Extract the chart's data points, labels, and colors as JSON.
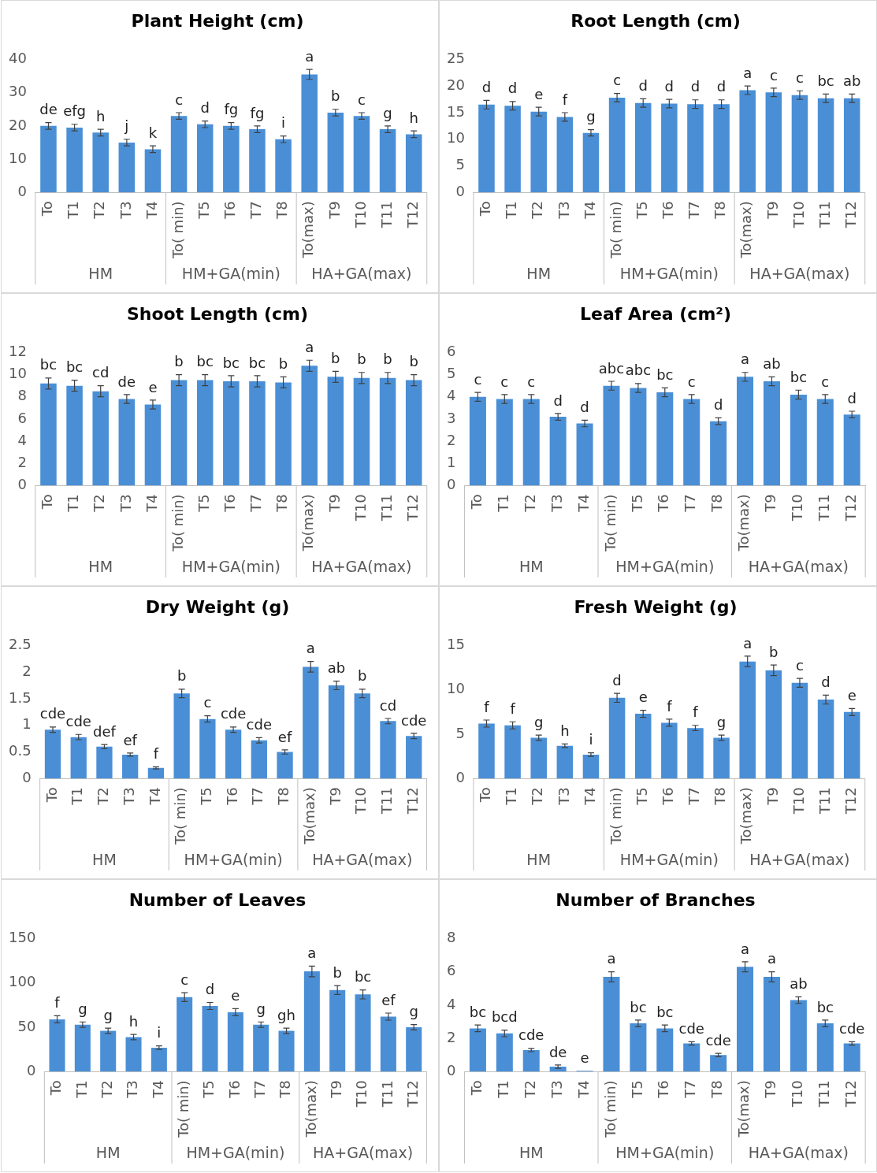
{
  "chart_data": [
    {
      "type": "bar",
      "title": "Plant Height (cm)",
      "categories": [
        "To",
        "T1",
        "T2",
        "T3",
        "T4",
        "To( min)",
        "T5",
        "T6",
        "T7",
        "T8",
        "To(max)",
        "T9",
        "T10",
        "T11",
        "T12"
      ],
      "values": [
        20,
        19.5,
        18,
        15,
        13,
        23,
        20.5,
        20,
        19,
        16,
        35.5,
        24,
        23,
        19,
        17.5
      ],
      "errors": [
        1,
        1,
        1,
        1,
        1,
        1,
        1,
        1,
        1,
        1,
        1.5,
        1,
        1,
        1,
        1
      ],
      "value_labels": [
        "de",
        "efg",
        "h",
        "j",
        "k",
        "c",
        "d",
        "fg",
        "fg",
        "i",
        "a",
        "b",
        "c",
        "g",
        "h"
      ],
      "color": "#4a8fd6",
      "ylim": [
        0,
        40
      ],
      "yticks": [
        0,
        10,
        20,
        30,
        40
      ],
      "annotations": [
        "HM",
        "HM+GA(min)",
        "HA+GA(max)"
      ]
    },
    {
      "type": "bar",
      "title": "Root Length (cm)",
      "categories": [
        "To",
        "T1",
        "T2",
        "T3",
        "T4",
        "To( min)",
        "T5",
        "T6",
        "T7",
        "T8",
        "To(max)",
        "T9",
        "T10",
        "T11",
        "T12"
      ],
      "values": [
        16.5,
        16.3,
        15.2,
        14.2,
        11.2,
        17.8,
        16.8,
        16.7,
        16.6,
        16.6,
        19.2,
        18.8,
        18.3,
        17.7,
        17.7
      ],
      "errors": [
        0.8,
        0.8,
        0.8,
        0.8,
        0.6,
        0.8,
        0.8,
        0.8,
        0.8,
        0.8,
        0.8,
        0.8,
        0.8,
        0.8,
        0.8
      ],
      "value_labels": [
        "d",
        "d",
        "e",
        "f",
        "g",
        "c",
        "d",
        "d",
        "d",
        "d",
        "a",
        "c",
        "c",
        "bc",
        "ab"
      ],
      "color": "#4a8fd6",
      "ylim": [
        0,
        25
      ],
      "yticks": [
        0,
        5,
        10,
        15,
        20,
        25
      ],
      "annotations": [
        "HM",
        "HM+GA(min)",
        "HA+GA(max)"
      ]
    },
    {
      "type": "bar",
      "title": "Shoot Length (cm)",
      "categories": [
        "To",
        "T1",
        "T2",
        "T3",
        "T4",
        "To( min)",
        "T5",
        "T6",
        "T7",
        "T8",
        "To(max)",
        "T9",
        "T10",
        "T11",
        "T12"
      ],
      "values": [
        9.2,
        9,
        8.5,
        7.8,
        7.3,
        9.5,
        9.5,
        9.4,
        9.4,
        9.3,
        10.8,
        9.8,
        9.7,
        9.7,
        9.5
      ],
      "errors": [
        0.5,
        0.5,
        0.5,
        0.4,
        0.4,
        0.5,
        0.5,
        0.5,
        0.5,
        0.5,
        0.5,
        0.5,
        0.5,
        0.5,
        0.5
      ],
      "value_labels": [
        "bc",
        "bc",
        "cd",
        "de",
        "e",
        "b",
        "bc",
        "bc",
        "bc",
        "b",
        "a",
        "b",
        "b",
        "b",
        "b"
      ],
      "color": "#4a8fd6",
      "ylim": [
        0,
        12
      ],
      "yticks": [
        0,
        2,
        4,
        6,
        8,
        10,
        12
      ],
      "annotations": [
        "HM",
        "HM+GA(min)",
        "HA+GA(max)"
      ]
    },
    {
      "type": "bar",
      "title": "Leaf Area (cm²)",
      "categories": [
        "To",
        "T1",
        "T2",
        "T3",
        "T4",
        "To( min)",
        "T5",
        "T6",
        "T7",
        "T8",
        "To(max)",
        "T9",
        "T10",
        "T11",
        "T12"
      ],
      "values": [
        4,
        3.9,
        3.9,
        3.1,
        2.8,
        4.5,
        4.4,
        4.2,
        3.9,
        2.9,
        4.9,
        4.7,
        4.1,
        3.9,
        3.2
      ],
      "errors": [
        0.2,
        0.2,
        0.2,
        0.15,
        0.15,
        0.2,
        0.2,
        0.2,
        0.2,
        0.15,
        0.2,
        0.2,
        0.2,
        0.2,
        0.15
      ],
      "value_labels": [
        "c",
        "c",
        "c",
        "d",
        "d",
        "abc",
        "abc",
        "bc",
        "c",
        "d",
        "a",
        "ab",
        "bc",
        "c",
        "d"
      ],
      "color": "#4a8fd6",
      "ylim": [
        0,
        6
      ],
      "yticks": [
        0,
        1,
        2,
        3,
        4,
        5,
        6
      ],
      "annotations": [
        "HM",
        "HM+GA(min)",
        "HA+GA(max)"
      ]
    },
    {
      "type": "bar",
      "title": "Dry Weight (g)",
      "categories": [
        "To",
        "T1",
        "T2",
        "T3",
        "T4",
        "To( min)",
        "T5",
        "T6",
        "T7",
        "T8",
        "To(max)",
        "T9",
        "T10",
        "T11",
        "T12"
      ],
      "values": [
        0.92,
        0.78,
        0.6,
        0.45,
        0.2,
        1.6,
        1.12,
        0.92,
        0.72,
        0.5,
        2.1,
        1.75,
        1.6,
        1.08,
        0.8
      ],
      "errors": [
        0.05,
        0.05,
        0.04,
        0.03,
        0.02,
        0.08,
        0.06,
        0.05,
        0.05,
        0.04,
        0.1,
        0.08,
        0.08,
        0.05,
        0.05
      ],
      "value_labels": [
        "cde",
        "cde",
        "def",
        "ef",
        "f",
        "b",
        "c",
        "cde",
        "cde",
        "ef",
        "a",
        "ab",
        "b",
        "cd",
        "cde"
      ],
      "color": "#4a8fd6",
      "ylim": [
        0,
        2.5
      ],
      "yticks": [
        0,
        0.5,
        1,
        1.5,
        2,
        2.5
      ],
      "annotations": [
        "HM",
        "HM+GA(min)",
        "HA+GA(max)"
      ]
    },
    {
      "type": "bar",
      "title": "Fresh Weight (g)",
      "categories": [
        "To",
        "T1",
        "T2",
        "T3",
        "T4",
        "To( min)",
        "T5",
        "T6",
        "T7",
        "T8",
        "To(max)",
        "T9",
        "T10",
        "T11",
        "T12"
      ],
      "values": [
        6.2,
        6,
        4.6,
        3.7,
        2.7,
        9.1,
        7.3,
        6.3,
        5.7,
        4.6,
        13.2,
        12.2,
        10.8,
        8.9,
        7.5
      ],
      "errors": [
        0.4,
        0.4,
        0.3,
        0.2,
        0.2,
        0.5,
        0.4,
        0.4,
        0.3,
        0.3,
        0.6,
        0.6,
        0.5,
        0.5,
        0.4
      ],
      "value_labels": [
        "f",
        "f",
        "g",
        "h",
        "i",
        "d",
        "e",
        "f",
        "f",
        "g",
        "a",
        "b",
        "c",
        "d",
        "e"
      ],
      "color": "#4a8fd6",
      "ylim": [
        0,
        15
      ],
      "yticks": [
        0,
        5,
        10,
        15
      ],
      "annotations": [
        "HM",
        "HM+GA(min)",
        "HA+GA(max)"
      ]
    },
    {
      "type": "bar",
      "title": "Number of Leaves",
      "categories": [
        "To",
        "T1",
        "T2",
        "T3",
        "T4",
        "To( min)",
        "T5",
        "T6",
        "T7",
        "T8",
        "To(max)",
        "T9",
        "T10",
        "T11",
        "T12"
      ],
      "values": [
        59,
        53,
        46,
        39,
        27,
        84,
        74,
        67,
        53,
        46,
        113,
        92,
        87,
        62,
        50
      ],
      "errors": [
        4,
        3,
        3,
        3,
        2,
        5,
        4,
        4,
        3,
        3,
        6,
        5,
        5,
        4,
        3
      ],
      "value_labels": [
        "f",
        "g",
        "g",
        "h",
        "i",
        "c",
        "d",
        "e",
        "g",
        "gh",
        "a",
        "b",
        "bc",
        "ef",
        "g"
      ],
      "color": "#4a8fd6",
      "ylim": [
        0,
        150
      ],
      "yticks": [
        0,
        50,
        100,
        150
      ],
      "annotations": [
        "HM",
        "HM+GA(min)",
        "HA+GA(max)"
      ]
    },
    {
      "type": "bar",
      "title": "Number of Branches",
      "categories": [
        "To",
        "T1",
        "T2",
        "T3",
        "T4",
        "To( min)",
        "T5",
        "T6",
        "T7",
        "T8",
        "To(max)",
        "T9",
        "T10",
        "T11",
        "T12"
      ],
      "values": [
        2.6,
        2.3,
        1.3,
        0.3,
        0.05,
        5.7,
        2.9,
        2.6,
        1.7,
        1,
        6.3,
        5.7,
        4.3,
        2.9,
        1.7
      ],
      "errors": [
        0.2,
        0.2,
        0.1,
        0.1,
        null,
        0.3,
        0.2,
        0.2,
        0.1,
        0.1,
        0.3,
        0.3,
        0.2,
        0.2,
        0.1
      ],
      "value_labels": [
        "bc",
        "bcd",
        "cde",
        "de",
        "e",
        "a",
        "bc",
        "bc",
        "cde",
        "cde",
        "a",
        "a",
        "ab",
        "bc",
        "cde"
      ],
      "color": "#4a8fd6",
      "ylim": [
        0,
        8
      ],
      "yticks": [
        0,
        2,
        4,
        6,
        8
      ],
      "annotations": [
        "HM",
        "HM+GA(min)",
        "HA+GA(max)"
      ]
    }
  ]
}
